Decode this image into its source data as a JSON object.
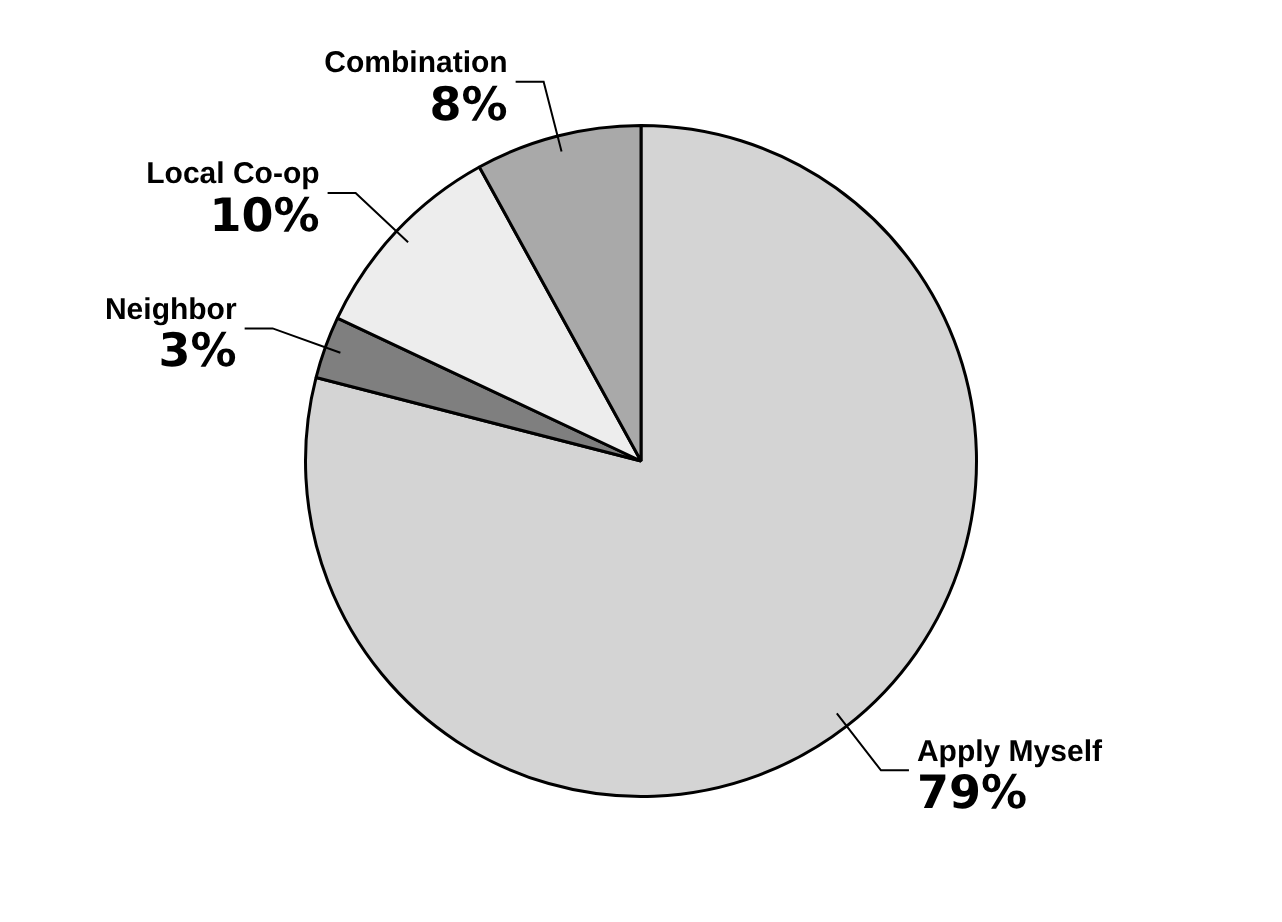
{
  "chart_data": {
    "type": "pie",
    "categories": [
      "Apply Myself",
      "Neighbor",
      "Local Co-op",
      "Combination"
    ],
    "values": [
      79,
      3,
      10,
      8
    ],
    "colors": [
      "#d4d4d4",
      "#7f7f7f",
      "#ededed",
      "#a9a9a9"
    ],
    "value_labels": [
      "79%",
      "3%",
      "10%",
      "8%"
    ],
    "legend": false
  }
}
